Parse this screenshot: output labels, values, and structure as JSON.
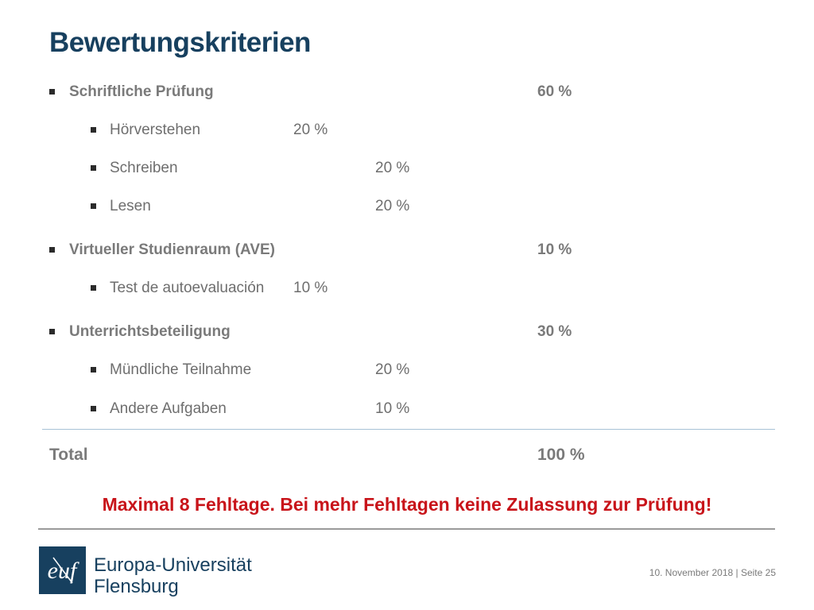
{
  "title": "Bewertungskriterien",
  "criteria": [
    {
      "label": "Schriftliche Prüfung",
      "percent": "60 %",
      "items": [
        {
          "label": "Hörverstehen",
          "percent": "20 %"
        },
        {
          "label": "Schreiben",
          "percent": "20 %"
        },
        {
          "label": "Lesen",
          "percent": "20 %"
        }
      ]
    },
    {
      "label": "Virtueller Studienraum (AVE)",
      "percent": "10 %",
      "items": [
        {
          "label": "Test de autoevaluación",
          "percent": "10 %"
        }
      ]
    },
    {
      "label": "Unterrichtsbeteiligung",
      "percent": "30 %",
      "items": [
        {
          "label": "Mündliche Teilnahme",
          "percent": "20 %"
        },
        {
          "label": "Andere Aufgaben",
          "percent": "10 %"
        }
      ]
    }
  ],
  "total": {
    "label": "Total",
    "percent": "100 %"
  },
  "warning": "Maximal 8 Fehltage. Bei mehr Fehltagen keine Zulassung zur Prüfung!",
  "logo": {
    "monogram": "euf",
    "name_line1": "Europa-Universität",
    "name_line2": "Flensburg"
  },
  "footer": "10. November 2018 | Seite 25",
  "colors": {
    "title": "#17405f",
    "text": "#7a7a7a",
    "warning": "#c8141a",
    "brand": "#17405f"
  }
}
